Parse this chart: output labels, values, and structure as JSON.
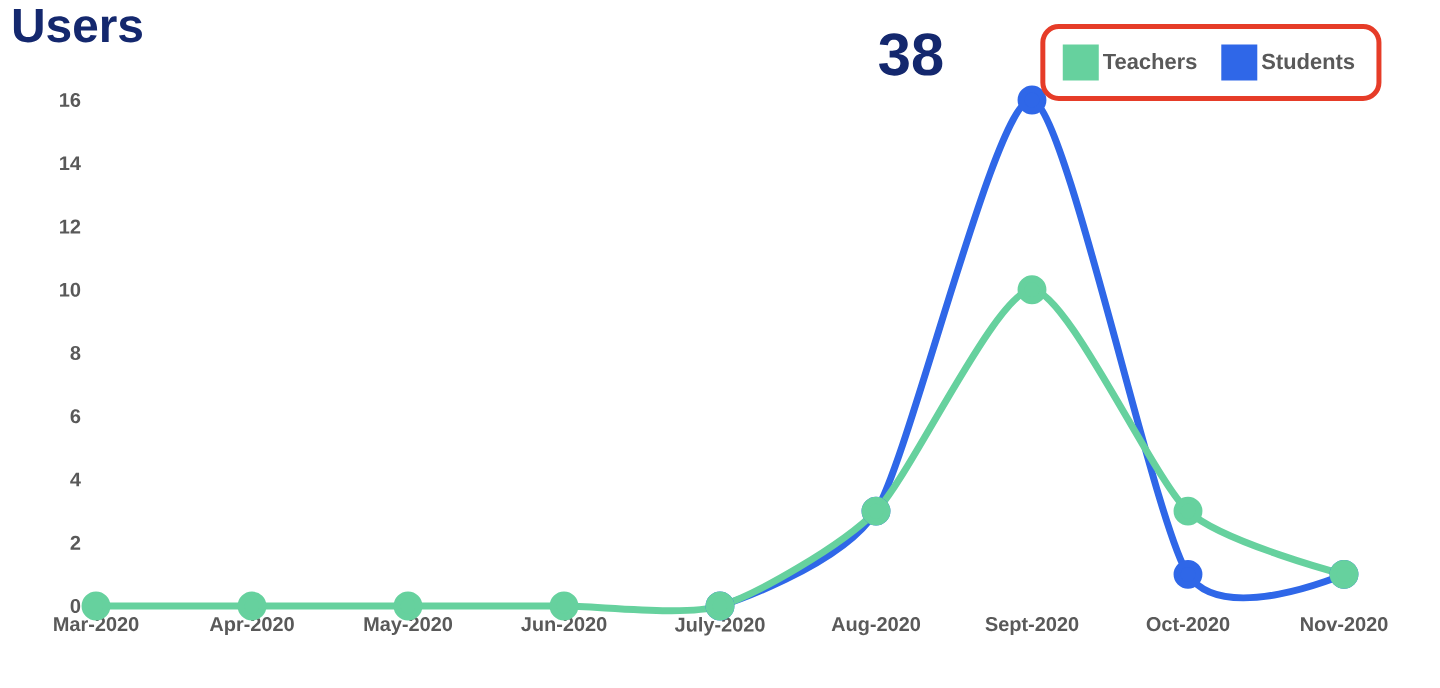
{
  "chart_data": {
    "type": "line",
    "title": "Users",
    "annotations": [
      "38"
    ],
    "categories": [
      "Mar-2020",
      "Apr-2020",
      "May-2020",
      "Jun-2020",
      "July-2020",
      "Aug-2020",
      "Sept-2020",
      "Oct-2020",
      "Nov-2020"
    ],
    "series": [
      {
        "name": "Teachers",
        "color": "#66d19e",
        "values": [
          0,
          0,
          0,
          0,
          0,
          3,
          10,
          3,
          1
        ]
      },
      {
        "name": "Students",
        "color": "#2f67e8",
        "values": [
          null,
          null,
          null,
          null,
          0,
          3,
          16,
          1,
          1
        ]
      }
    ],
    "ylim": [
      0,
      16
    ],
    "yticks": [
      0,
      2,
      4,
      6,
      8,
      10,
      12,
      14,
      16
    ],
    "grid": false,
    "legend": "top right",
    "marker": "circle",
    "line_style": "solid"
  }
}
